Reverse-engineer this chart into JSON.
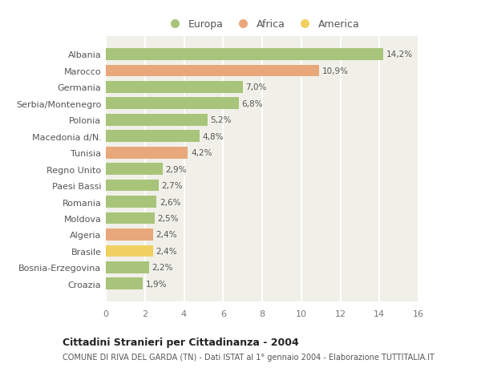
{
  "countries": [
    "Albania",
    "Marocco",
    "Germania",
    "Serbia/Montenegro",
    "Polonia",
    "Macedonia d/N.",
    "Tunisia",
    "Regno Unito",
    "Paesi Bassi",
    "Romania",
    "Moldova",
    "Algeria",
    "Brasile",
    "Bosnia-Erzegovina",
    "Croazia"
  ],
  "values": [
    14.2,
    10.9,
    7.0,
    6.8,
    5.2,
    4.8,
    4.2,
    2.9,
    2.7,
    2.6,
    2.5,
    2.4,
    2.4,
    2.2,
    1.9
  ],
  "labels": [
    "14,2%",
    "10,9%",
    "7,0%",
    "6,8%",
    "5,2%",
    "4,8%",
    "4,2%",
    "2,9%",
    "2,7%",
    "2,6%",
    "2,5%",
    "2,4%",
    "2,4%",
    "2,2%",
    "1,9%"
  ],
  "continent": [
    "Europa",
    "Africa",
    "Europa",
    "Europa",
    "Europa",
    "Europa",
    "Africa",
    "Europa",
    "Europa",
    "Europa",
    "Europa",
    "Africa",
    "America",
    "Europa",
    "Europa"
  ],
  "colors": {
    "Europa": "#a8c47a",
    "Africa": "#e8a87c",
    "America": "#f0d060"
  },
  "xlim": [
    0,
    16
  ],
  "xticks": [
    0,
    2,
    4,
    6,
    8,
    10,
    12,
    14,
    16
  ],
  "title": "Cittadini Stranieri per Cittadinanza - 2004",
  "subtitle": "COMUNE DI RIVA DEL GARDA (TN) - Dati ISTAT al 1° gennaio 2004 - Elaborazione TUTTITALIA.IT",
  "bg_color": "#ffffff",
  "plot_bg_color": "#f0f0e8",
  "grid_color": "#ffffff",
  "bar_height": 0.72,
  "legend_items": [
    "Europa",
    "Africa",
    "America"
  ],
  "legend_colors": [
    "#a8c47a",
    "#e8a87c",
    "#f0d060"
  ]
}
